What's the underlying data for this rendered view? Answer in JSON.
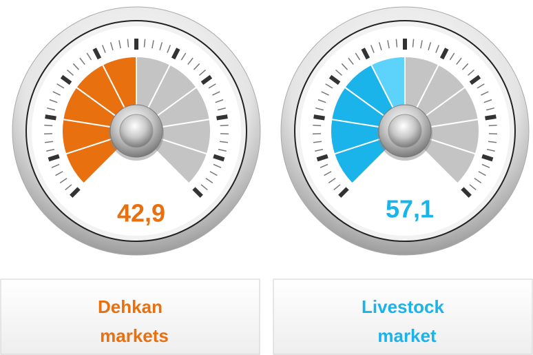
{
  "gauges": [
    {
      "value_label": "42,9",
      "label_lines": [
        "Dehkan",
        "markets"
      ],
      "color": "#e8700f"
    },
    {
      "value_label": "57,1",
      "label_lines": [
        "Livestock",
        "market"
      ],
      "color": "#1ab3ea",
      "highlight_color": "#5dd2fb"
    }
  ]
}
